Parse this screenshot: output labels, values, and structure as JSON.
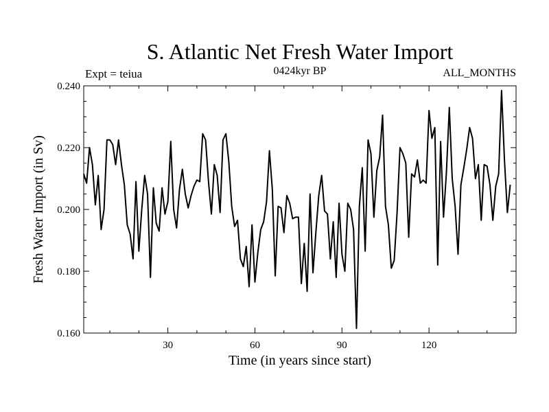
{
  "chart_data": {
    "type": "line",
    "title": "S. Atlantic Net Fresh Water Import",
    "subtitle": "0424kyr BP",
    "left_annotation": "Expt = teiua",
    "right_annotation": "ALL_MONTHS",
    "xlabel": "Time (in years since start)",
    "ylabel": "Fresh Water Import (in Sv)",
    "xlim": [
      1,
      150
    ],
    "ylim": [
      0.16,
      0.24
    ],
    "x_ticks": [
      30,
      60,
      90,
      120
    ],
    "x_tick_labels": [
      "30",
      "60",
      "90",
      "120"
    ],
    "y_ticks": [
      0.16,
      0.18,
      0.2,
      0.22,
      0.24
    ],
    "y_tick_labels": [
      "0.160",
      "0.180",
      "0.200",
      "0.220",
      "0.240"
    ],
    "grid": false,
    "series": [
      {
        "name": "Net Fresh Water Import",
        "color": "#000000",
        "x_start": 1,
        "x_step": 1,
        "values": [
          0.2115,
          0.2085,
          0.22,
          0.2145,
          0.2015,
          0.211,
          0.1935,
          0.2,
          0.2225,
          0.2225,
          0.221,
          0.2145,
          0.2225,
          0.2145,
          0.208,
          0.195,
          0.192,
          0.184,
          0.209,
          0.1865,
          0.2,
          0.211,
          0.205,
          0.178,
          0.207,
          0.1955,
          0.193,
          0.207,
          0.1985,
          0.2025,
          0.222,
          0.2,
          0.194,
          0.2065,
          0.213,
          0.205,
          0.2005,
          0.2045,
          0.2075,
          0.2095,
          0.209,
          0.2245,
          0.2225,
          0.209,
          0.1985,
          0.2145,
          0.211,
          0.199,
          0.2225,
          0.2245,
          0.2155,
          0.201,
          0.1945,
          0.1965,
          0.184,
          0.1815,
          0.188,
          0.175,
          0.195,
          0.1765,
          0.186,
          0.1935,
          0.196,
          0.2025,
          0.219,
          0.2065,
          0.1785,
          0.201,
          0.2005,
          0.1925,
          0.2045,
          0.202,
          0.197,
          0.1975,
          0.1975,
          0.176,
          0.189,
          0.1735,
          0.205,
          0.1795,
          0.1925,
          0.2045,
          0.211,
          0.1995,
          0.1985,
          0.184,
          0.196,
          0.178,
          0.202,
          0.1855,
          0.18,
          0.202,
          0.2,
          0.1935,
          0.1615,
          0.201,
          0.2135,
          0.1865,
          0.2225,
          0.218,
          0.1975,
          0.2125,
          0.217,
          0.2305,
          0.201,
          0.195,
          0.181,
          0.1835,
          0.199,
          0.22,
          0.218,
          0.215,
          0.191,
          0.2115,
          0.2105,
          0.216,
          0.2085,
          0.2095,
          0.2085,
          0.232,
          0.223,
          0.2265,
          0.182,
          0.222,
          0.1975,
          0.212,
          0.233,
          0.21,
          0.201,
          0.1855,
          0.208,
          0.2135,
          0.2195,
          0.2265,
          0.223,
          0.21,
          0.2145,
          0.1965,
          0.2145,
          0.214,
          0.208,
          0.1965,
          0.2075,
          0.2115,
          0.2385,
          0.216,
          0.199,
          0.208
        ]
      }
    ]
  }
}
